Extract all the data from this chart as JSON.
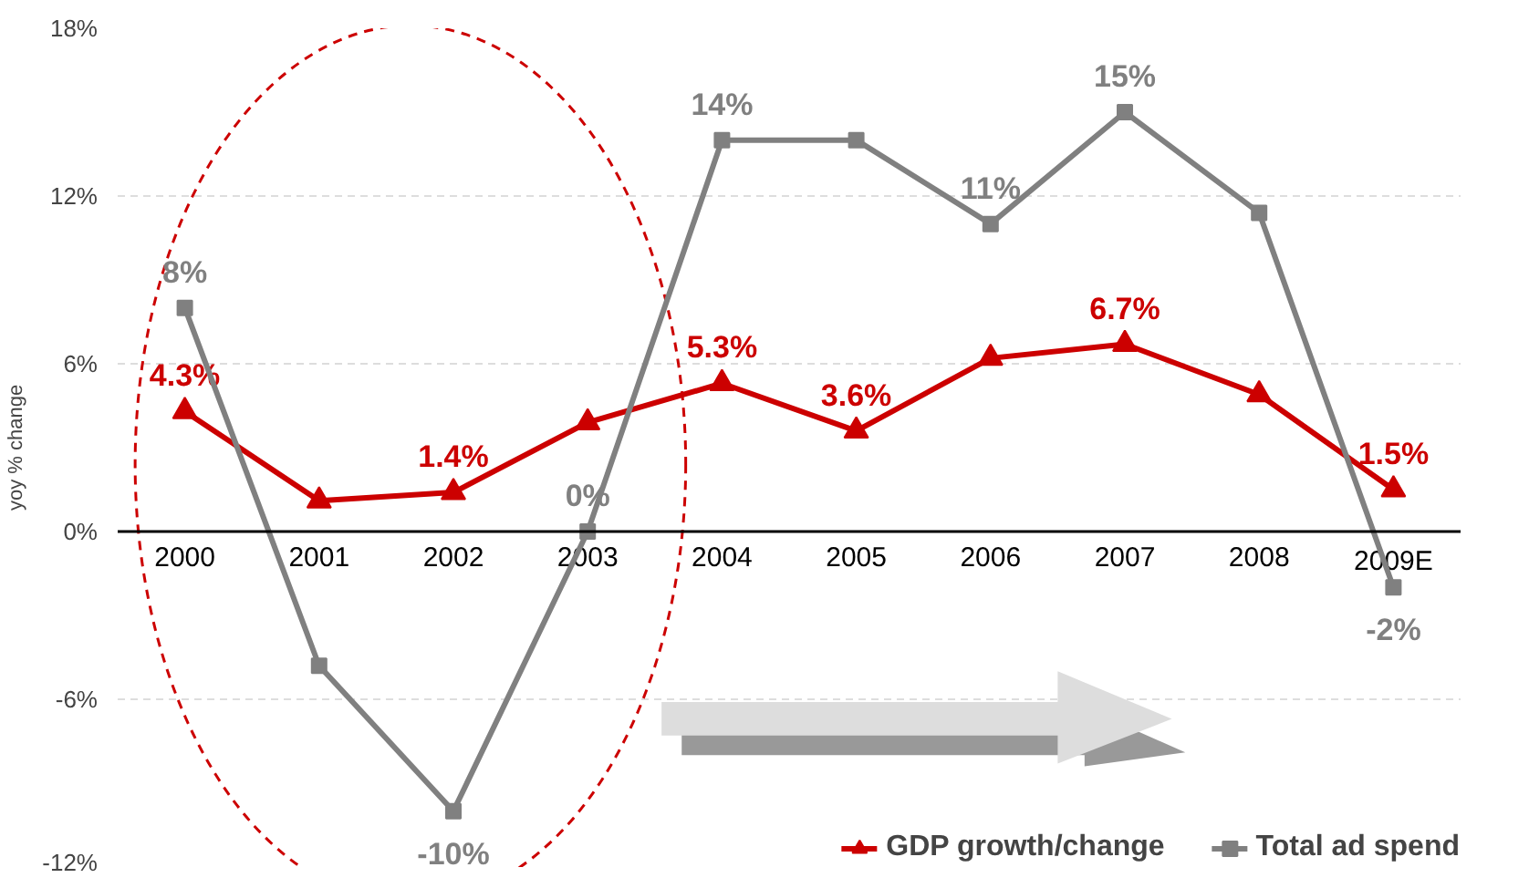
{
  "chart_data": {
    "type": "line",
    "ylabel": "yoy % change",
    "categories": [
      "2000",
      "2001",
      "2002",
      "2003",
      "2004",
      "2005",
      "2006",
      "2007",
      "2008",
      "2009E"
    ],
    "ylim": [
      -12,
      18
    ],
    "yticks": [
      {
        "value": -12,
        "label": "-12%"
      },
      {
        "value": -6,
        "label": "-6%"
      },
      {
        "value": 0,
        "label": "0%"
      },
      {
        "value": 6,
        "label": "6%"
      },
      {
        "value": 12,
        "label": "12%"
      },
      {
        "value": 18,
        "label": "18%"
      }
    ],
    "grid": "y",
    "legend": "bottom right",
    "line_style": "solid",
    "series": [
      {
        "name": "GDP growth/change",
        "color": "#cc0000",
        "marker": "triangle",
        "values": [
          4.3,
          1.1,
          1.4,
          3.9,
          5.3,
          3.6,
          6.2,
          6.7,
          4.9,
          1.5
        ],
        "value_labels": [
          "4.3%",
          null,
          "1.4%",
          null,
          "5.3%",
          "3.6%",
          null,
          "6.7%",
          null,
          "1.5%"
        ]
      },
      {
        "name": "Total ad spend",
        "color": "#808080",
        "marker": "square",
        "values": [
          8,
          -4.8,
          -10,
          0,
          14,
          14,
          11,
          15,
          11.4,
          -2
        ],
        "value_labels": [
          "8%",
          null,
          "-10%",
          "0%",
          "14%",
          null,
          "11%",
          "15%",
          null,
          "-2%"
        ]
      }
    ]
  }
}
